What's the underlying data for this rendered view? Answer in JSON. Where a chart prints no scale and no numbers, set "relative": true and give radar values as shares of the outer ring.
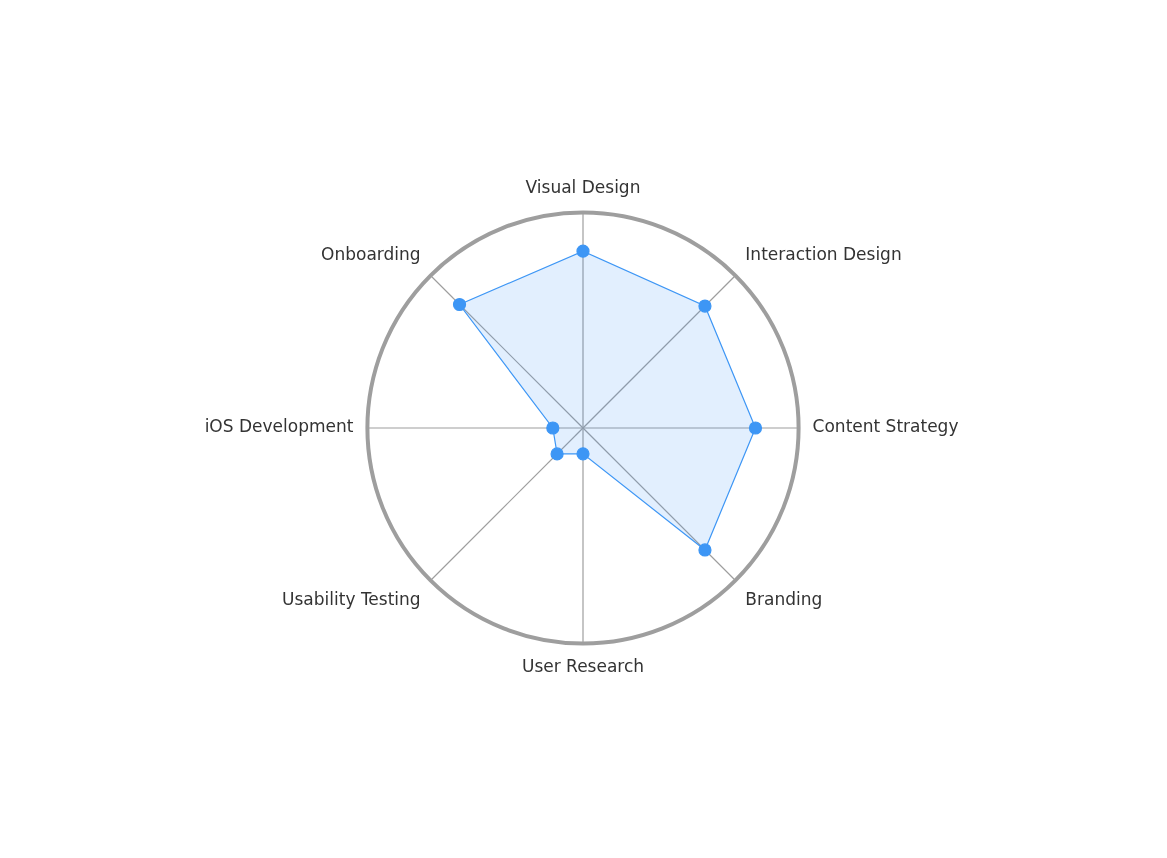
{
  "chart_data": {
    "type": "radar",
    "relative": true,
    "marker": "circle",
    "categories": [
      "Visual Design",
      "Interaction Design",
      "Content Strategy",
      "Branding",
      "User Research",
      "Usability Testing",
      "iOS Development",
      "Onboarding"
    ],
    "series": [
      {
        "color": "#3d96f5",
        "values": [
          0.82,
          0.8,
          0.8,
          0.8,
          0.12,
          0.17,
          0.14,
          0.81
        ]
      }
    ]
  }
}
